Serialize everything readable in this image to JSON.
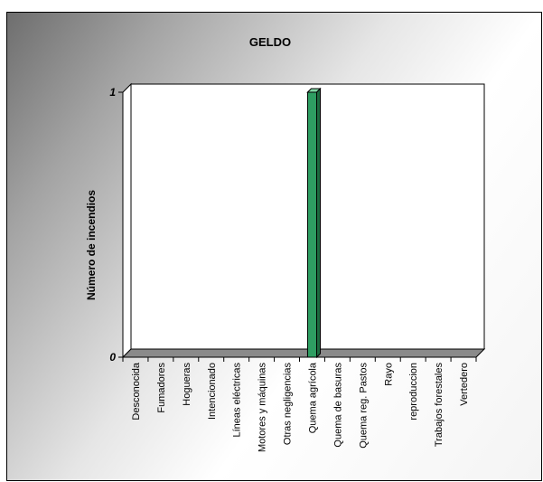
{
  "chart_data": {
    "type": "bar",
    "title": "GELDO",
    "xlabel": "",
    "ylabel": "Número de incendios",
    "categories": [
      "Desconocida",
      "Fumadores",
      "Hogueras",
      "Intencionado",
      "Líneas eléctricas",
      "Motores y máquinas",
      "Otras negligencias",
      "Quema agrícola",
      "Quema de basuras",
      "Quema reg. Pastos",
      "Rayo",
      "reproduccion",
      "Trabajos forestales",
      "Vertedero"
    ],
    "values": [
      0,
      0,
      0,
      0,
      0,
      0,
      0,
      1,
      0,
      0,
      0,
      0,
      0,
      0
    ],
    "yticks": [
      "0",
      "1"
    ],
    "ylim": [
      0,
      1
    ],
    "grid": false,
    "bar_color": "#2e9e62",
    "floor_color": "#8a8a8a"
  }
}
